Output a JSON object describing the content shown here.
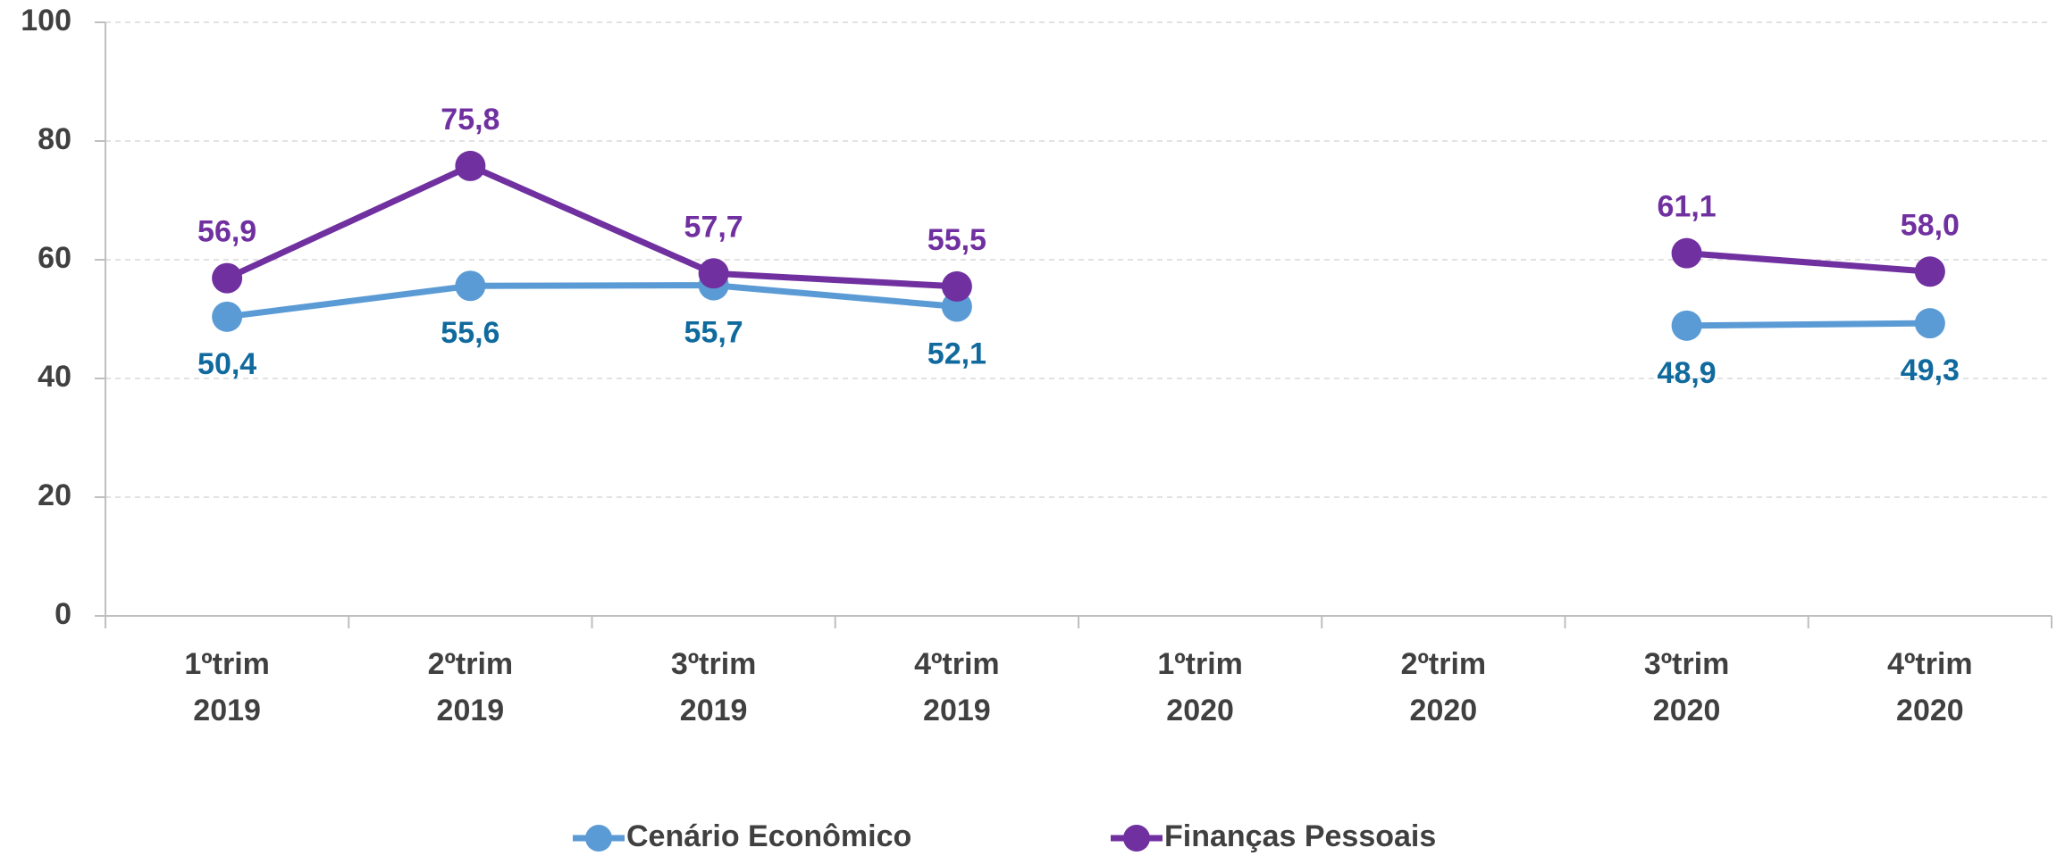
{
  "chart_data": {
    "type": "line",
    "categories": [
      "1ºtrim 2019",
      "2ºtrim 2019",
      "3ºtrim 2019",
      "4ºtrim 2019",
      "1ºtrim 2020",
      "2ºtrim 2020",
      "3ºtrim 2020",
      "4ºtrim 2020"
    ],
    "series": [
      {
        "name": "Cenário Econômico",
        "color": "#5b9bd5",
        "label_color": "#106a9e",
        "values": [
          50.4,
          55.6,
          55.7,
          52.1,
          null,
          null,
          48.9,
          49.3
        ],
        "value_labels": [
          "50,4",
          "55,6",
          "55,7",
          "52,1",
          null,
          null,
          "48,9",
          "49,3"
        ]
      },
      {
        "name": "Finanças Pessoais",
        "color": "#7030a0",
        "label_color": "#7030a0",
        "values": [
          56.9,
          75.8,
          57.7,
          55.5,
          null,
          null,
          61.1,
          58.0
        ],
        "value_labels": [
          "56,9",
          "75,8",
          "57,7",
          "55,5",
          null,
          null,
          "61,1",
          "58,0"
        ]
      }
    ],
    "ylim": [
      0,
      100
    ],
    "yticks": [
      0,
      20,
      40,
      60,
      80,
      100
    ],
    "grid": true,
    "legend": "bottom"
  }
}
